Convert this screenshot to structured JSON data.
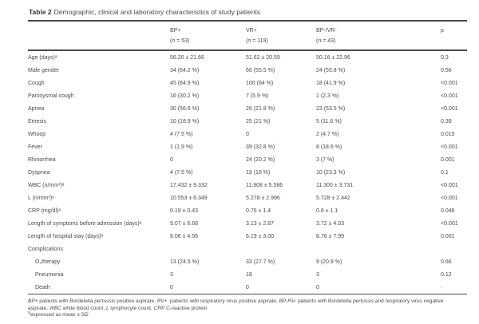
{
  "title": {
    "label": "Table 2",
    "caption": "Demographic, clinical and laboratory characteristics of study patients"
  },
  "table": {
    "headers": [
      "BP+",
      "VR+",
      "BP-/VR-",
      "p"
    ],
    "subheaders": [
      {
        "open": "(",
        "var": "n",
        "rest": " = 53)"
      },
      {
        "open": "(",
        "var": "n",
        "rest": " = 119)"
      },
      {
        "open": "(",
        "var": "n",
        "rest": " = 43)"
      }
    ],
    "rows": [
      {
        "label": "Age (days)ᵃ",
        "indent": false,
        "values": [
          "56.20 ± 21.66",
          "51.62 ± 20.59",
          "50.16 ± 22.96",
          "0,3"
        ]
      },
      {
        "label": "Male gender",
        "indent": false,
        "values": [
          "34 (64.2 %)",
          "66 (55.5 %)",
          "24 (55.8 %)",
          "0.56"
        ]
      },
      {
        "label": "Cough",
        "indent": false,
        "values": [
          "45 (84.9 %)",
          "100 (84 %)",
          "18 (41.9 %)",
          "<0.001"
        ]
      },
      {
        "label": "Paroxysmal cough",
        "indent": false,
        "values": [
          "16 (30.2 %)",
          "7 (5.9 %)",
          "1 (2.3 %)",
          "<0.001"
        ]
      },
      {
        "label": "Apnea",
        "indent": false,
        "values": [
          "30 (56.6 %)",
          "26 (21.8 %)",
          "23 (53.5 %)",
          "<0.001"
        ]
      },
      {
        "label": "Emesis",
        "indent": false,
        "values": [
          "10 (18.9 %)",
          "25 (21 %)",
          "5 (11.6 %)",
          "0.39"
        ]
      },
      {
        "label": "Whoop",
        "indent": false,
        "values": [
          "4 (7.5 %)",
          "0",
          "2 (4.7 %)",
          "0.015"
        ]
      },
      {
        "label": "Fever",
        "indent": false,
        "values": [
          "1 (1.9 %)",
          "39 (32.8 %)",
          "8 (18.6 %)",
          "<0.001"
        ]
      },
      {
        "label": "Rhinorrhea",
        "indent": false,
        "values": [
          "0",
          "24 (20.2 %)",
          "3 (7 %)",
          "0.001"
        ]
      },
      {
        "label": "Dyspnea",
        "indent": false,
        "values": [
          "4 (7.5 %)",
          "19 (16 %)",
          "10 (23.3 %)",
          "0.1"
        ]
      },
      {
        "label": "WBC (n/mm³)ᵃ",
        "indent": false,
        "values": [
          "17.432 ± 9.332",
          "11.908 ± 5.586",
          "11.300 ± 3.731",
          "<0.001"
        ]
      },
      {
        "label": "L (n/mm³)ᵃ",
        "indent": false,
        "values": [
          "10.553 ± 6.349",
          "5.278 ± 2.996",
          "5.728 ± 2.442",
          "<0.001"
        ]
      },
      {
        "label": "CRP (mg/dl)ᵃ",
        "indent": false,
        "values": [
          "0.19 ± 0.43",
          "0.76 ± 1.4",
          "0.6 ± 1.1",
          "0.046"
        ]
      },
      {
        "label": "Length of symptoms before admission (days)ᵃ",
        "indent": false,
        "values": [
          "9.07 ± 6.68",
          "3.13 ± 2.87",
          "3.72 ± 4.03",
          "<0.001"
        ]
      },
      {
        "label": "Length of hospital stay (days)ᵃ",
        "indent": false,
        "values": [
          "8.06 ± 4.56",
          "6.19 ± 3.00",
          "8.76 ± 7.99",
          "0.001"
        ]
      },
      {
        "label": "Complications",
        "indent": false,
        "values": [
          "",
          "",
          "",
          ""
        ]
      },
      {
        "label": "O₂therapy",
        "indent": true,
        "values": [
          "13 (24.5 %)",
          "33 (27.7 %)",
          "9 (20.9 %)",
          "0.66"
        ]
      },
      {
        "label": "Pneumonia",
        "indent": true,
        "values": [
          "3",
          "18",
          "3",
          "0.12"
        ]
      },
      {
        "label": "Death",
        "indent": true,
        "values": [
          "0",
          "0",
          "0",
          "-"
        ]
      }
    ]
  },
  "footnotes": {
    "abbreviations": [
      {
        "t": "BP+",
        "i": true
      },
      {
        "t": " patients with Bordetella ",
        "i": false
      },
      {
        "t": "pertussis",
        "i": true
      },
      {
        "t": " positive aspirate, ",
        "i": false
      },
      {
        "t": "RV+",
        "i": true
      },
      {
        "t": ": patients with respiratory virus positive aspirate, ",
        "i": false
      },
      {
        "t": "BP-RV-",
        "i": true
      },
      {
        "t": " patients with Bordetella ",
        "i": false
      },
      {
        "t": "pertussis",
        "i": true
      },
      {
        "t": " and respiratory virus negative aspirate, ",
        "i": false
      },
      {
        "t": "WBC",
        "i": true
      },
      {
        "t": " white blood count, ",
        "i": false
      },
      {
        "t": "L",
        "i": true
      },
      {
        "t": " lymphocyte count, ",
        "i": false
      },
      {
        "t": "CRP",
        "i": true
      },
      {
        "t": " C-reactive protein",
        "i": false
      }
    ],
    "mean_sd": {
      "sup": "a",
      "text": "expressed as mean ± SD"
    }
  }
}
